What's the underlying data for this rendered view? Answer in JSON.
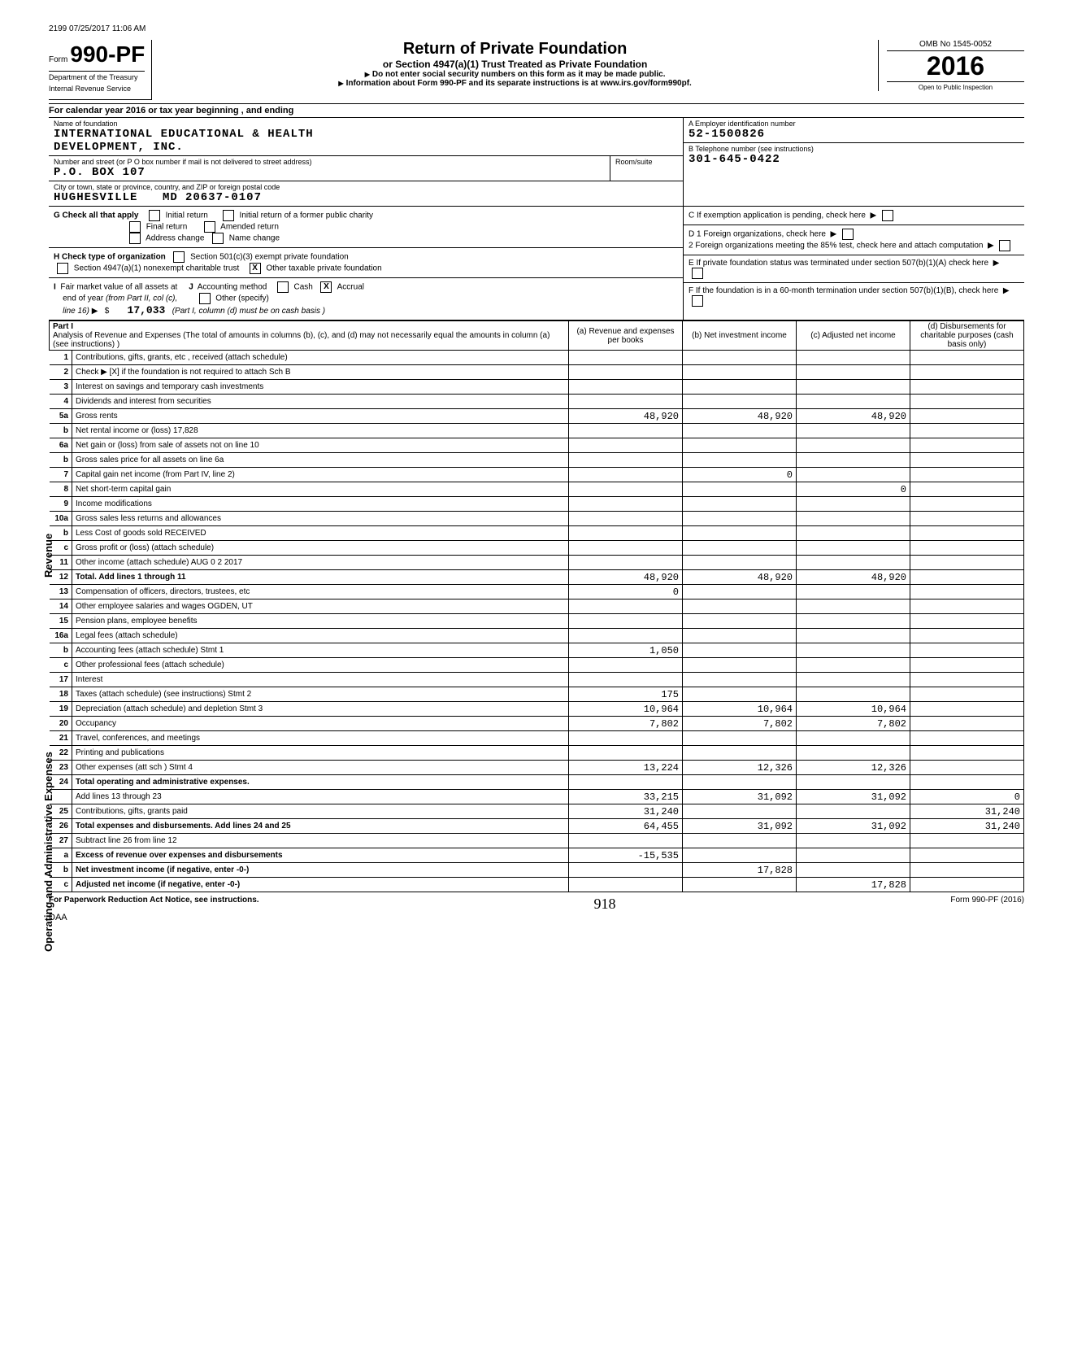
{
  "timestamp": "2199 07/25/2017 11:06 AM",
  "form": {
    "prefix": "Form",
    "number": "990-PF",
    "dept1": "Department of the Treasury",
    "dept2": "Internal Revenue Service"
  },
  "title": {
    "main": "Return of Private Foundation",
    "sub": "or Section 4947(a)(1) Trust Treated as Private Foundation",
    "instr1": "Do not enter social security numbers on this form as it may be made public.",
    "instr2": "Information about Form 990-PF and its separate instructions is at www.irs.gov/form990pf."
  },
  "yearbox": {
    "omb": "OMB No 1545-0052",
    "year": "2016",
    "inspect": "Open to Public Inspection"
  },
  "calyear": "For calendar year 2016 or tax year beginning                              , and ending",
  "foundation": {
    "name_label": "Name of foundation",
    "name1": "INTERNATIONAL EDUCATIONAL & HEALTH",
    "name2": "DEVELOPMENT, INC.",
    "addr_label": "Number and street (or P O box number if mail is not delivered to street address)",
    "addr": "P.O. BOX 107",
    "city_label": "City or town, state or province, country, and ZIP or foreign postal code",
    "city": "HUGHESVILLE",
    "state": "MD",
    "zip": "20637-0107",
    "room_label": "Room/suite"
  },
  "rightinfo": {
    "a_label": "A   Employer identification number",
    "ein": "52-1500826",
    "b_label": "B   Telephone number (see instructions)",
    "phone": "301-645-0422",
    "c_label": "C   If exemption application is pending, check here",
    "d1": "D   1   Foreign organizations, check here",
    "d2": "2   Foreign organizations meeting the 85% test, check here and attach computation",
    "e_label": "E   If private foundation status was terminated under section 507(b)(1)(A) check here",
    "f_label": "F   If the foundation is in a 60-month termination under section 507(b)(1)(B), check here"
  },
  "g": {
    "label": "G  Check all that apply",
    "opts": [
      "Initial return",
      "Final return",
      "Address change",
      "Initial return of a former public charity",
      "Amended return",
      "Name change"
    ]
  },
  "h": {
    "label": "H  Check type of organization",
    "opt1": "Section 501(c)(3) exempt private foundation",
    "opt2": "Section 4947(a)(1) nonexempt charitable trust",
    "opt3": "Other taxable private foundation",
    "opt3_checked": "X"
  },
  "i": {
    "label": "I   Fair market value of all assets at end of year (from Part II, col (c), line 16)",
    "j_label": "J   Accounting method",
    "cash": "Cash",
    "accrual": "Accrual",
    "accrual_checked": "X",
    "other": "Other (specify)",
    "value": "17,033",
    "note": "(Part I, column (d) must be on cash basis )"
  },
  "part1": {
    "label": "Part I",
    "desc": "Analysis of Revenue and Expenses (The total of amounts in columns (b), (c), and (d) may not necessarily equal the amounts in column (a) (see instructions) )",
    "col_a": "(a) Revenue and expenses per books",
    "col_b": "(b) Net investment income",
    "col_c": "(c) Adjusted net income",
    "col_d": "(d) Disbursements for charitable purposes (cash basis only)"
  },
  "rows": [
    {
      "n": "1",
      "d": "Contributions, gifts, grants, etc , received (attach schedule)"
    },
    {
      "n": "2",
      "d": "Check ▶  [X]  if the foundation is not required to attach Sch B"
    },
    {
      "n": "3",
      "d": "Interest on savings and temporary cash investments"
    },
    {
      "n": "4",
      "d": "Dividends and interest from securities"
    },
    {
      "n": "5a",
      "d": "Gross rents",
      "a": "48,920",
      "b": "48,920",
      "c": "48,920"
    },
    {
      "n": "b",
      "d": "Net rental income or (loss)                          17,828"
    },
    {
      "n": "6a",
      "d": "Net gain or (loss) from sale of assets not on line 10"
    },
    {
      "n": "b",
      "d": "Gross sales price for all assets on line 6a"
    },
    {
      "n": "7",
      "d": "Capital gain net income (from Part IV, line 2)",
      "b": "0"
    },
    {
      "n": "8",
      "d": "Net short-term capital gain",
      "c": "0"
    },
    {
      "n": "9",
      "d": "Income modifications"
    },
    {
      "n": "10a",
      "d": "Gross sales less returns and allowances"
    },
    {
      "n": "b",
      "d": "Less Cost of goods sold RECEIVED"
    },
    {
      "n": "c",
      "d": "Gross profit or (loss) (attach schedule)"
    },
    {
      "n": "11",
      "d": "Other income (attach schedule) AUG 0 2 2017"
    },
    {
      "n": "12",
      "d": "Total. Add lines 1 through 11",
      "bold": true,
      "a": "48,920",
      "b": "48,920",
      "c": "48,920"
    },
    {
      "n": "13",
      "d": "Compensation of officers, directors, trustees, etc",
      "a": "0"
    },
    {
      "n": "14",
      "d": "Other employee salaries and wages OGDEN, UT"
    },
    {
      "n": "15",
      "d": "Pension plans, employee benefits"
    },
    {
      "n": "16a",
      "d": "Legal fees (attach schedule)"
    },
    {
      "n": "b",
      "d": "Accounting fees (attach schedule)       Stmt 1",
      "a": "1,050"
    },
    {
      "n": "c",
      "d": "Other professional fees (attach schedule)"
    },
    {
      "n": "17",
      "d": "Interest"
    },
    {
      "n": "18",
      "d": "Taxes (attach schedule) (see instructions)    Stmt 2",
      "a": "175"
    },
    {
      "n": "19",
      "d": "Depreciation (attach schedule) and depletion   Stmt 3",
      "a": "10,964",
      "b": "10,964",
      "c": "10,964"
    },
    {
      "n": "20",
      "d": "Occupancy",
      "a": "7,802",
      "b": "7,802",
      "c": "7,802"
    },
    {
      "n": "21",
      "d": "Travel, conferences, and meetings"
    },
    {
      "n": "22",
      "d": "Printing and publications"
    },
    {
      "n": "23",
      "d": "Other expenses (att sch )                    Stmt 4",
      "a": "13,224",
      "b": "12,326",
      "c": "12,326"
    },
    {
      "n": "24",
      "d": "Total operating and administrative expenses.",
      "bold": true
    },
    {
      "n": "",
      "d": "Add lines 13 through 23",
      "a": "33,215",
      "b": "31,092",
      "c": "31,092",
      "dd": "0"
    },
    {
      "n": "25",
      "d": "Contributions, gifts, grants paid",
      "a": "31,240",
      "dd": "31,240"
    },
    {
      "n": "26",
      "d": "Total expenses and disbursements. Add lines 24 and 25",
      "bold": true,
      "a": "64,455",
      "b": "31,092",
      "c": "31,092",
      "dd": "31,240"
    },
    {
      "n": "27",
      "d": "Subtract line 26 from line 12"
    },
    {
      "n": "a",
      "d": "Excess of revenue over expenses and disbursements",
      "bold": true,
      "a": "-15,535"
    },
    {
      "n": "b",
      "d": "Net investment income (if negative, enter -0-)",
      "bold": true,
      "b": "17,828"
    },
    {
      "n": "c",
      "d": "Adjusted net income (if negative, enter -0-)",
      "bold": true,
      "c": "17,828"
    }
  ],
  "footer": {
    "left": "For Paperwork Reduction Act Notice, see instructions.",
    "daa": "DAA",
    "right": "Form 990-PF (2016)",
    "handwritten": "918"
  },
  "sidebars": {
    "revenue": "Revenue",
    "expenses": "Operating and Administrative Expenses"
  }
}
